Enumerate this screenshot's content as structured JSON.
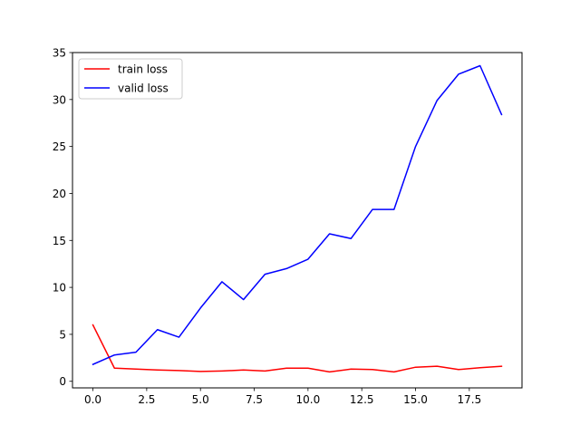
{
  "chart_data": {
    "type": "line",
    "title": "",
    "xlabel": "",
    "ylabel": "",
    "x": [
      0,
      1,
      2,
      3,
      4,
      5,
      6,
      7,
      8,
      9,
      10,
      11,
      12,
      13,
      14,
      15,
      16,
      17,
      18,
      19
    ],
    "series": [
      {
        "name": "train loss",
        "color": "#ff0000",
        "values": [
          6.0,
          1.4,
          1.3,
          1.2,
          1.15,
          1.05,
          1.1,
          1.2,
          1.1,
          1.4,
          1.4,
          1.0,
          1.3,
          1.25,
          1.0,
          1.5,
          1.6,
          1.25,
          1.45,
          1.6
        ]
      },
      {
        "name": "valid loss",
        "color": "#0000ff",
        "values": [
          1.8,
          2.8,
          3.1,
          5.5,
          4.7,
          7.8,
          10.6,
          8.7,
          11.4,
          12.0,
          13.0,
          15.7,
          15.2,
          18.3,
          18.3,
          25.0,
          29.9,
          32.7,
          33.6,
          28.4
        ]
      }
    ],
    "xlim": [
      -0.95,
      19.95
    ],
    "ylim": [
      -0.7,
      35.0
    ],
    "xticks": [
      0.0,
      2.5,
      5.0,
      7.5,
      10.0,
      12.5,
      15.0,
      17.5
    ],
    "xtick_labels": [
      "0.0",
      "2.5",
      "5.0",
      "7.5",
      "10.0",
      "12.5",
      "15.0",
      "17.5"
    ],
    "yticks": [
      0,
      5,
      10,
      15,
      20,
      25,
      30,
      35
    ],
    "ytick_labels": [
      "0",
      "5",
      "10",
      "15",
      "20",
      "25",
      "30",
      "35"
    ],
    "grid": false,
    "legend_position": "top-left"
  }
}
